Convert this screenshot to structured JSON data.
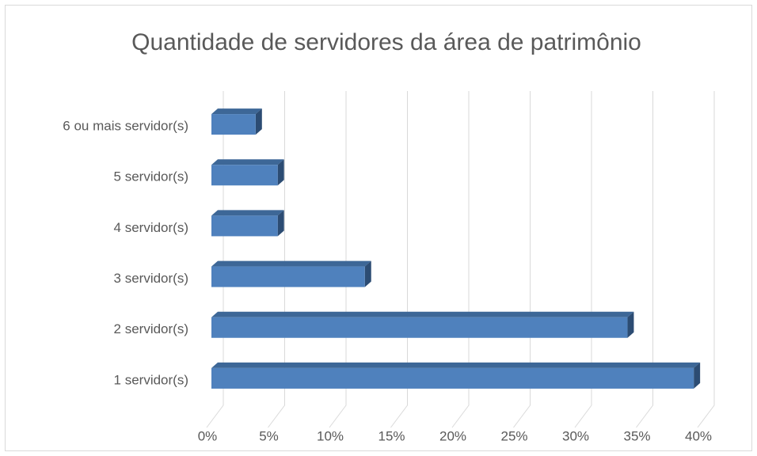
{
  "chart_data": {
    "type": "bar3d",
    "orientation": "horizontal",
    "title": "Quantidade de servidores da área de patrimônio",
    "categories": [
      "1 servidor(s)",
      "2 servidor(s)",
      "3 servidor(s)",
      "4 servidor(s)",
      "5 servidor(s)",
      "6 ou mais servidor(s)"
    ],
    "values": [
      39.3,
      33.9,
      12.5,
      5.4,
      5.4,
      3.6
    ],
    "color": "#4f81bd",
    "xlim": [
      0,
      40
    ],
    "xticks": [
      {
        "value": 0,
        "label": "0%"
      },
      {
        "value": 5,
        "label": "5%"
      },
      {
        "value": 10,
        "label": "10%"
      },
      {
        "value": 15,
        "label": "15%"
      },
      {
        "value": 20,
        "label": "20%"
      },
      {
        "value": 25,
        "label": "25%"
      },
      {
        "value": 30,
        "label": "30%"
      },
      {
        "value": 35,
        "label": "35%"
      },
      {
        "value": 40,
        "label": "40%"
      }
    ],
    "grid": true
  }
}
